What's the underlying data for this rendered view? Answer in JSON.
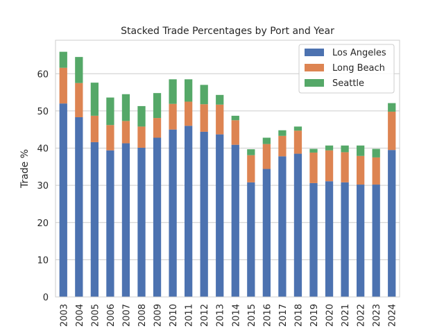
{
  "chart_data": {
    "type": "bar",
    "stacked": true,
    "title": "Stacked Trade Percentages by Port and Year",
    "xlabel": "",
    "ylabel": "Trade %",
    "ylim": [
      0,
      69
    ],
    "yticks": [
      0,
      10,
      20,
      30,
      40,
      50,
      60
    ],
    "grid": true,
    "legend_position": "top-right",
    "categories": [
      "2003",
      "2004",
      "2005",
      "2006",
      "2007",
      "2008",
      "2009",
      "2010",
      "2011",
      "2012",
      "2013",
      "2014",
      "2015",
      "2016",
      "2017",
      "2018",
      "2019",
      "2020",
      "2021",
      "2022",
      "2023",
      "2024"
    ],
    "series": [
      {
        "name": "Los Angeles",
        "color": "#4c72b0",
        "values": [
          52.0,
          48.3,
          41.6,
          39.4,
          41.3,
          40.1,
          42.8,
          45.0,
          46.0,
          44.4,
          43.7,
          40.9,
          30.8,
          34.4,
          37.8,
          38.5,
          30.6,
          31.1,
          30.8,
          30.2,
          30.2,
          39.5
        ]
      },
      {
        "name": "Long Beach",
        "color": "#dd8452",
        "values": [
          9.6,
          9.2,
          7.1,
          6.8,
          6.0,
          5.7,
          5.3,
          6.9,
          6.5,
          7.4,
          8.0,
          6.6,
          7.3,
          6.7,
          5.5,
          6.2,
          8.2,
          8.3,
          8.1,
          7.7,
          7.3,
          10.3
        ]
      },
      {
        "name": "Seattle",
        "color": "#55a868",
        "values": [
          4.3,
          7.0,
          8.9,
          7.4,
          7.2,
          5.5,
          6.7,
          6.6,
          6.0,
          5.2,
          2.6,
          1.2,
          1.6,
          1.7,
          1.5,
          1.1,
          1.0,
          1.3,
          1.8,
          2.8,
          2.3,
          2.3
        ]
      }
    ]
  }
}
